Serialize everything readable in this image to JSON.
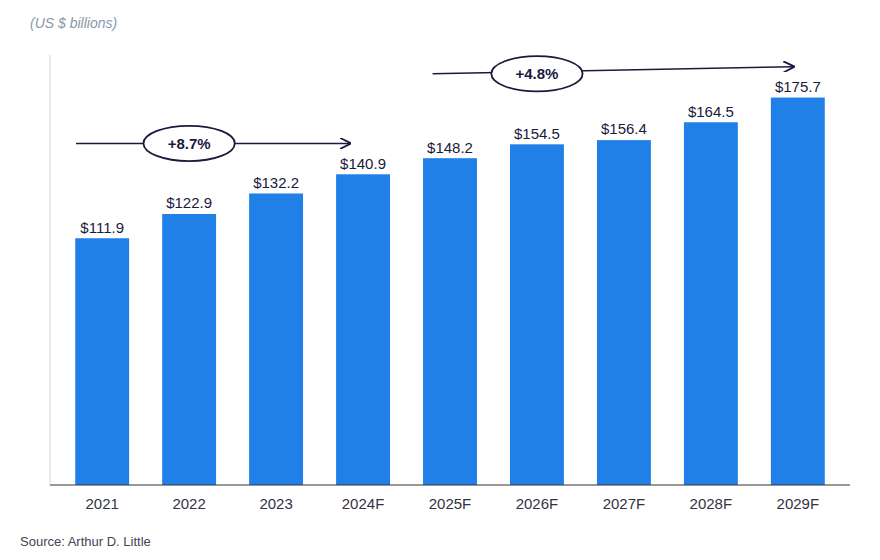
{
  "chart_data": {
    "type": "bar",
    "subtitle": "(US $ billions)",
    "source": "Source: Arthur D. Little",
    "categories": [
      "2021",
      "2022",
      "2023",
      "2024F",
      "2025F",
      "2026F",
      "2027F",
      "2028F",
      "2029F"
    ],
    "values": [
      111.9,
      122.9,
      132.2,
      140.9,
      148.2,
      154.5,
      156.4,
      164.5,
      175.7
    ],
    "value_labels": [
      "$111.9",
      "$122.9",
      "$132.2",
      "$140.9",
      "$148.2",
      "$154.5",
      "$156.4",
      "$164.5",
      "$175.7"
    ],
    "color": "#2080e8",
    "ylim": [
      0,
      195
    ],
    "data_labels": true,
    "tick_labels": "x",
    "grid": false,
    "annotations": [
      "+8.7%",
      "+4.8%"
    ]
  }
}
